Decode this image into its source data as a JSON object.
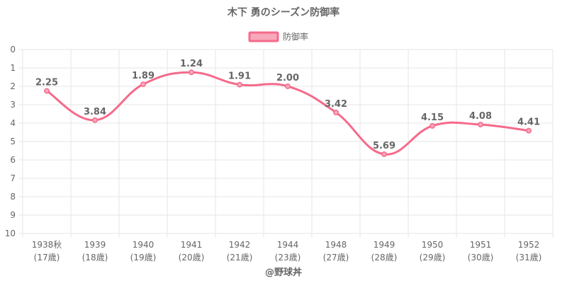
{
  "chart_data": {
    "type": "line",
    "title": "木下 勇のシーズン防御率",
    "legend": {
      "label": "防御率",
      "position": "top"
    },
    "categories": [
      [
        "1938秋",
        "(17歳)"
      ],
      [
        "1939",
        "(18歳)"
      ],
      [
        "1940",
        "(19歳)"
      ],
      [
        "1941",
        "(20歳)"
      ],
      [
        "1942",
        "(21歳)"
      ],
      [
        "1944",
        "(23歳)"
      ],
      [
        "1948",
        "(27歳)"
      ],
      [
        "1949",
        "(28歳)"
      ],
      [
        "1950",
        "(29歳)"
      ],
      [
        "1951",
        "(30歳)"
      ],
      [
        "1952",
        "(31歳)"
      ]
    ],
    "series": [
      {
        "name": "防御率",
        "values": [
          2.25,
          3.84,
          1.89,
          1.24,
          1.91,
          2.0,
          3.42,
          5.69,
          4.15,
          4.08,
          4.41
        ],
        "labels": [
          "2.25",
          "3.84",
          "1.89",
          "1.24",
          "1.91",
          "2.00",
          "3.42",
          "5.69",
          "4.15",
          "4.08",
          "4.41"
        ]
      }
    ],
    "ylim": [
      0,
      10
    ],
    "y_reversed": true,
    "yticks": [
      "0",
      "1",
      "2",
      "3",
      "4",
      "5",
      "6",
      "7",
      "8",
      "9",
      "10"
    ],
    "grid": true,
    "colors": {
      "line": "#f56a8a",
      "fill": "#f7a8bb",
      "grid": "#e6e6e6",
      "text": "#666666"
    }
  },
  "credit": "@野球丼"
}
